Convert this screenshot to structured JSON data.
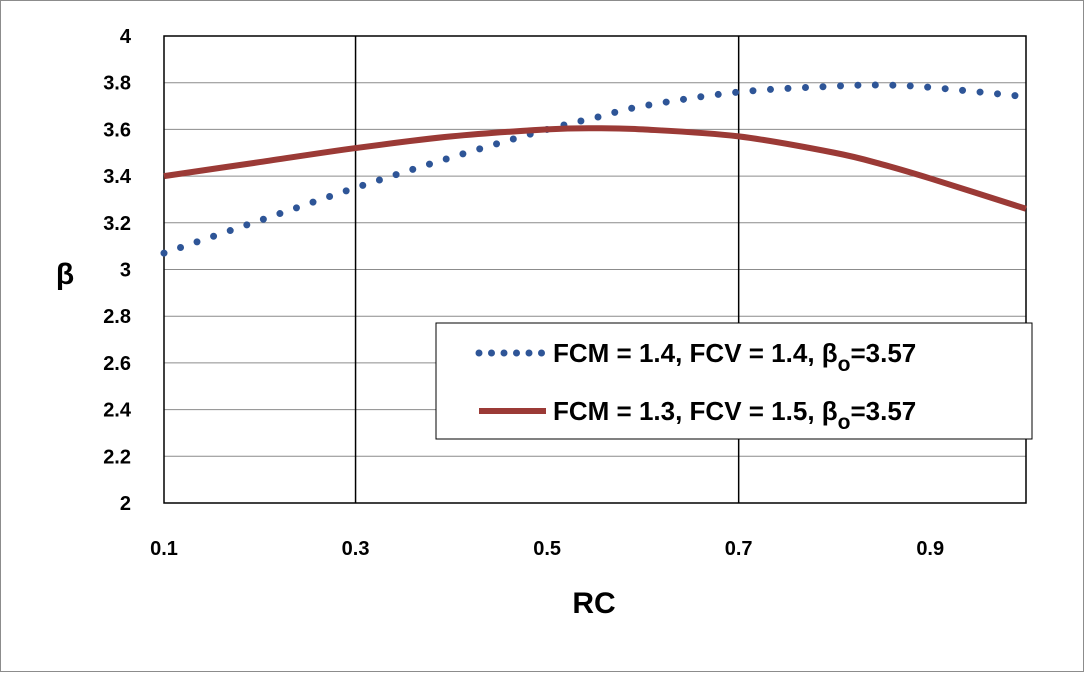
{
  "chart_data": {
    "type": "line",
    "xlabel": "RC",
    "ylabel": "β",
    "xlim": [
      0.1,
      1.0
    ],
    "ylim": [
      2,
      4
    ],
    "x_ticks": [
      "0.1",
      "0.3",
      "0.5",
      "0.7",
      "0.9"
    ],
    "y_ticks": [
      "2",
      "2.2",
      "2.4",
      "2.6",
      "2.8",
      "3",
      "3.2",
      "3.4",
      "3.6",
      "3.8",
      "4"
    ],
    "grid": "horizontal",
    "vertical_lines_x": [
      0.3,
      0.7
    ],
    "legend_position": "lower-right",
    "x": [
      0.1,
      0.2,
      0.3,
      0.4,
      0.5,
      0.55,
      0.6,
      0.7,
      0.8,
      0.85,
      0.9,
      1.0
    ],
    "series": [
      {
        "name_main": "FCM = 1.4, FCV = 1.4, β",
        "name_sub": "o",
        "name_tail": "=3.57",
        "style": "dotted",
        "color": "#2E5597",
        "values": [
          3.07,
          3.21,
          3.35,
          3.48,
          3.6,
          3.65,
          3.7,
          3.76,
          3.785,
          3.79,
          3.78,
          3.74
        ]
      },
      {
        "name_main": "FCM = 1.3, FCV = 1.5, β",
        "name_sub": "o",
        "name_tail": "=3.57",
        "style": "solid",
        "color": "#9B3A36",
        "values": [
          3.4,
          3.46,
          3.52,
          3.57,
          3.6,
          3.605,
          3.6,
          3.57,
          3.5,
          3.45,
          3.39,
          3.26
        ]
      }
    ]
  }
}
